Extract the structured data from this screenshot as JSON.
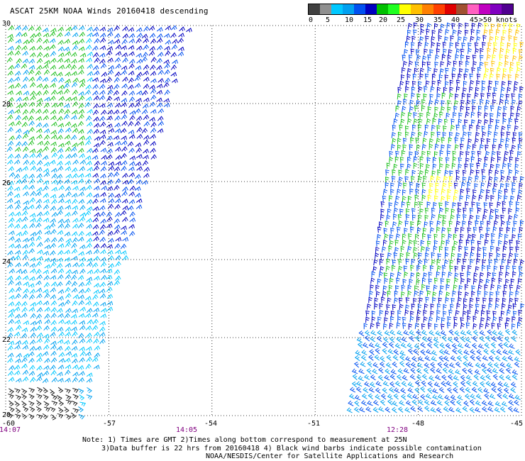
{
  "title": "ASCAT 25KM NOAA Winds 20160418 descending",
  "legend": {
    "labels": [
      "0",
      "5",
      "10",
      "15",
      "20",
      "25",
      "30",
      "35",
      "40",
      "45",
      ">50 knots"
    ],
    "colors": [
      "#404040",
      "#909090",
      "#00c8ff",
      "#00a0f0",
      "#0050f0",
      "#0000c0",
      "#00c000",
      "#20ff20",
      "#ffff00",
      "#ffc000",
      "#ff8000",
      "#ff4000",
      "#e00000",
      "#a05030",
      "#ff60c0",
      "#c000c0",
      "#8000c0",
      "#500090"
    ]
  },
  "axes": {
    "lat_labels": [
      "30",
      "28",
      "26",
      "24",
      "22",
      "20"
    ],
    "lon_labels": [
      "-60",
      "-57",
      "-54",
      "-51",
      "-48",
      "-45"
    ],
    "lat_range": [
      20,
      30
    ],
    "lon_range": [
      -60,
      -45
    ],
    "grid": true
  },
  "swath_times": [
    "14:07",
    "14:05",
    "12:28"
  ],
  "notes": [
    "Note: 1) Times are GMT 2)Times along bottom correspond to measurement at 25N",
    "3)Data buffer is 22 hrs from 20160418 4) Black wind barbs indicate possible contamination",
    "NOAA/NESDIS/Center for Satellite Applications and Research"
  ]
}
